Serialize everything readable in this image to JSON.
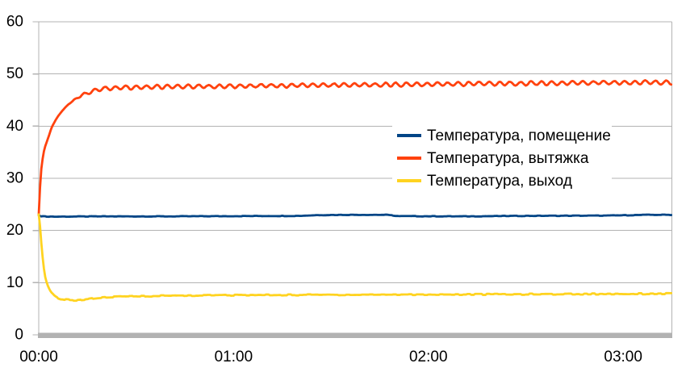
{
  "chart_data": {
    "type": "line",
    "title": "",
    "x_axis": {
      "tick_labels": [
        "00:00",
        "01:00",
        "02:00",
        "03:00"
      ],
      "tick_minutes": [
        0,
        60,
        120,
        180
      ],
      "range_minutes": [
        0,
        195
      ]
    },
    "y_axis": {
      "ticks": [
        0,
        10,
        20,
        30,
        40,
        50,
        60
      ],
      "range": [
        0,
        60
      ]
    },
    "grid": "horizontal",
    "legend_position": "middle-right",
    "series": [
      {
        "name": "room",
        "label": "Температура, помещение",
        "color": "#004586",
        "noise_amplitude": 0.05,
        "ripple": null,
        "points": [
          [
            0,
            23
          ],
          [
            0.5,
            22.8
          ],
          [
            1,
            22.7
          ],
          [
            5,
            22.65
          ],
          [
            20,
            22.7
          ],
          [
            40,
            22.7
          ],
          [
            60,
            22.75
          ],
          [
            80,
            22.8
          ],
          [
            86,
            22.95
          ],
          [
            95,
            23
          ],
          [
            107,
            23
          ],
          [
            111,
            22.75
          ],
          [
            130,
            22.7
          ],
          [
            150,
            22.8
          ],
          [
            175,
            22.85
          ],
          [
            188,
            23.0
          ],
          [
            195,
            23.0
          ]
        ]
      },
      {
        "name": "exhaust",
        "label": "Температура, вытяжка",
        "color": "#ff420e",
        "noise_amplitude": 0.08,
        "ripple": {
          "amplitude": 0.35,
          "period_minutes": 3.2,
          "start_minute": 10,
          "ramp_minutes": 6
        },
        "points": [
          [
            0,
            23
          ],
          [
            0.3,
            27
          ],
          [
            0.6,
            30.5
          ],
          [
            1,
            33
          ],
          [
            1.5,
            35
          ],
          [
            2,
            36.2
          ],
          [
            3,
            38
          ],
          [
            4,
            39.7
          ],
          [
            5,
            41
          ],
          [
            6,
            42
          ],
          [
            7,
            42.8
          ],
          [
            8,
            43.5
          ],
          [
            9,
            44.1
          ],
          [
            10,
            44.6
          ],
          [
            11,
            45.1
          ],
          [
            12,
            45.5
          ],
          [
            13,
            45.8
          ],
          [
            14,
            46.1
          ],
          [
            15,
            46.4
          ],
          [
            16,
            46.6
          ],
          [
            17,
            46.8
          ],
          [
            18,
            47
          ],
          [
            20,
            47.2
          ],
          [
            25,
            47.35
          ],
          [
            30,
            47.45
          ],
          [
            40,
            47.55
          ],
          [
            50,
            47.6
          ],
          [
            60,
            47.65
          ],
          [
            80,
            47.8
          ],
          [
            100,
            47.9
          ],
          [
            120,
            48
          ],
          [
            140,
            48.15
          ],
          [
            160,
            48.25
          ],
          [
            180,
            48.35
          ],
          [
            195,
            48.4
          ]
        ]
      },
      {
        "name": "outlet",
        "label": "Температура, выход",
        "color": "#ffd320",
        "noise_amplitude": 0.12,
        "ripple": null,
        "points": [
          [
            0,
            23
          ],
          [
            0.3,
            21.5
          ],
          [
            0.5,
            20
          ],
          [
            0.8,
            17.5
          ],
          [
            1,
            16
          ],
          [
            1.5,
            13
          ],
          [
            2,
            11
          ],
          [
            2.5,
            9.8
          ],
          [
            3,
            9
          ],
          [
            3.5,
            8.4
          ],
          [
            4,
            8
          ],
          [
            5,
            7.4
          ],
          [
            6,
            7.05
          ],
          [
            7,
            6.85
          ],
          [
            8,
            6.75
          ],
          [
            9,
            6.7
          ],
          [
            10,
            6.65
          ],
          [
            12,
            6.65
          ],
          [
            14,
            6.75
          ],
          [
            16,
            6.9
          ],
          [
            18,
            7.05
          ],
          [
            20,
            7.15
          ],
          [
            25,
            7.3
          ],
          [
            30,
            7.4
          ],
          [
            40,
            7.5
          ],
          [
            50,
            7.55
          ],
          [
            60,
            7.6
          ],
          [
            80,
            7.65
          ],
          [
            100,
            7.7
          ],
          [
            120,
            7.72
          ],
          [
            140,
            7.76
          ],
          [
            160,
            7.8
          ],
          [
            180,
            7.85
          ],
          [
            195,
            7.9
          ]
        ]
      }
    ],
    "style": {
      "gridline": "#b3b3b3",
      "axis_bar": "#b2b2b2",
      "text": "#000000",
      "background": "#ffffff"
    }
  }
}
